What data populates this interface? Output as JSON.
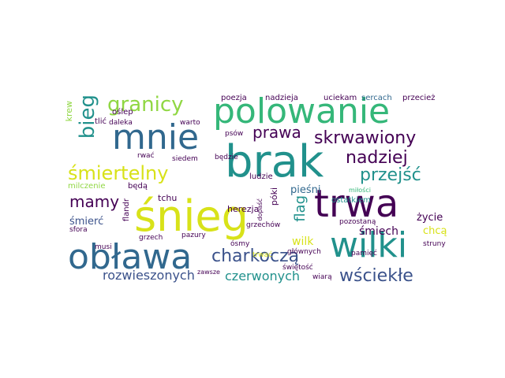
{
  "colors": {
    "dark_purple": "#440154",
    "indigo": "#3b528b",
    "blue": "#31688e",
    "teal": "#21918c",
    "green": "#35b779",
    "lime": "#90d743",
    "yellow": "#d8e219"
  },
  "words": [
    "śnieg",
    "brak",
    "trwa",
    "wilki",
    "obława",
    "polowanie",
    "mnie",
    "śmiertelny",
    "granicy",
    "bieg",
    "skrwawiony",
    "nadziej",
    "przejść",
    "prawa",
    "mamy",
    "charkoczą",
    "wściekłe",
    "czerwonych",
    "rozwieszonych",
    "flag",
    "wilk",
    "śmiech",
    "śmierć",
    "życie",
    "chcą",
    "herezja",
    "pieśni",
    "ludzie",
    "ostatkiem",
    "poezja",
    "nadzieja",
    "uciekam",
    "sercach",
    "przecież",
    "oślep",
    "tlić",
    "daleka",
    "warto",
    "psów",
    "będzie",
    "siedem",
    "rwać",
    "krew",
    "milczenie",
    "będą",
    "tchu",
    "flandr",
    "sfora",
    "musi",
    "grzech",
    "pazury",
    "ósmy",
    "świętość",
    "wiarą",
    "pamięć",
    "struny",
    "głównych",
    "pozostaną",
    "dopaść",
    "grzechów",
    "zawsze",
    "trwać",
    "miłości",
    "póki"
  ]
}
